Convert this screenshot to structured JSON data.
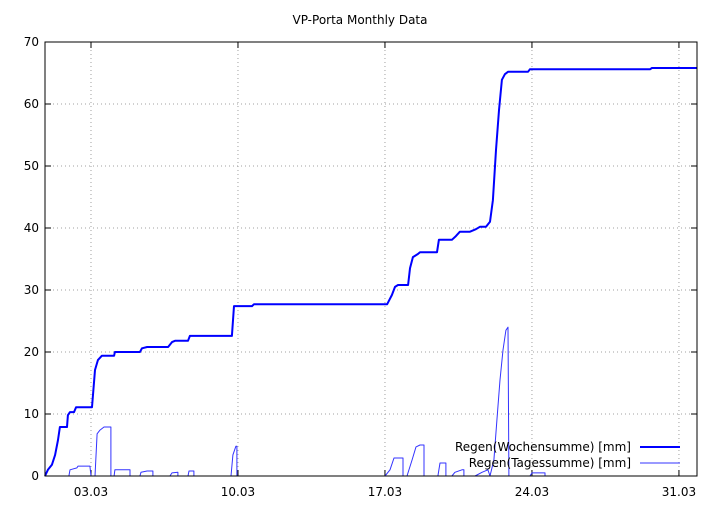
{
  "chart_data": {
    "type": "line",
    "title": "VP-Porta Monthly Data",
    "xlabel": "",
    "ylabel": "",
    "x_unit": "day of March",
    "xlim": [
      0.81,
      31.86
    ],
    "ylim": [
      0,
      70
    ],
    "yticks": [
      0,
      10,
      20,
      30,
      40,
      50,
      60,
      70
    ],
    "xticks": [
      {
        "value": 3,
        "label": "03.03"
      },
      {
        "value": 10,
        "label": "10.03"
      },
      {
        "value": 17,
        "label": "17.03"
      },
      {
        "value": 24,
        "label": "24.03"
      },
      {
        "value": 31,
        "label": "31.03"
      }
    ],
    "grid": true,
    "legend_position": "bottom-right",
    "series": [
      {
        "name": "Regen(Wochensumme) [mm]",
        "color": "#0000ff",
        "width": 2,
        "points": [
          [
            0.81,
            0
          ],
          [
            0.95,
            1
          ],
          [
            1.14,
            1.8
          ],
          [
            1.29,
            3.4
          ],
          [
            1.43,
            5.8
          ],
          [
            1.52,
            7.9
          ],
          [
            1.86,
            7.9
          ],
          [
            1.9,
            9.8
          ],
          [
            2.0,
            10.3
          ],
          [
            2.19,
            10.3
          ],
          [
            2.29,
            11.1
          ],
          [
            3.05,
            11.1
          ],
          [
            3.19,
            17.1
          ],
          [
            3.33,
            18.7
          ],
          [
            3.52,
            19.4
          ],
          [
            4.1,
            19.4
          ],
          [
            4.14,
            20
          ],
          [
            5.33,
            20
          ],
          [
            5.43,
            20.6
          ],
          [
            5.67,
            20.8
          ],
          [
            6.67,
            20.8
          ],
          [
            6.86,
            21.6
          ],
          [
            7.0,
            21.8
          ],
          [
            7.62,
            21.8
          ],
          [
            7.71,
            22.6
          ],
          [
            9.71,
            22.6
          ],
          [
            9.81,
            27.4
          ],
          [
            10.67,
            27.4
          ],
          [
            10.76,
            27.7
          ],
          [
            17.1,
            27.7
          ],
          [
            17.33,
            29.2
          ],
          [
            17.48,
            30.5
          ],
          [
            17.62,
            30.8
          ],
          [
            18.1,
            30.8
          ],
          [
            18.19,
            33.5
          ],
          [
            18.33,
            35.3
          ],
          [
            18.57,
            35.8
          ],
          [
            18.67,
            36.1
          ],
          [
            19.48,
            36.1
          ],
          [
            19.57,
            38.1
          ],
          [
            20.19,
            38.1
          ],
          [
            20.38,
            38.7
          ],
          [
            20.57,
            39.4
          ],
          [
            21.05,
            39.4
          ],
          [
            21.33,
            39.8
          ],
          [
            21.52,
            40.2
          ],
          [
            21.81,
            40.2
          ],
          [
            22.0,
            41
          ],
          [
            22.14,
            44.5
          ],
          [
            22.29,
            52.6
          ],
          [
            22.43,
            59
          ],
          [
            22.57,
            63.9
          ],
          [
            22.71,
            64.8
          ],
          [
            22.86,
            65.2
          ],
          [
            23.81,
            65.2
          ],
          [
            23.9,
            65.6
          ],
          [
            29.62,
            65.6
          ],
          [
            29.71,
            65.8
          ],
          [
            31.86,
            65.8
          ]
        ]
      },
      {
        "name": "Regen(Tagessumme) [mm]",
        "color": "#3333ff",
        "width": 1,
        "points": [
          [
            0.81,
            0
          ],
          [
            1.95,
            0
          ],
          [
            2.0,
            1.0
          ],
          [
            2.33,
            1.3
          ],
          [
            2.38,
            1.6
          ],
          [
            2.95,
            1.6
          ],
          [
            3.0,
            0
          ],
          [
            3.19,
            0
          ],
          [
            3.29,
            6.8
          ],
          [
            3.43,
            7.4
          ],
          [
            3.62,
            7.9
          ],
          [
            3.95,
            7.9
          ],
          [
            3.95,
            0
          ],
          [
            4.1,
            0
          ],
          [
            4.14,
            1.0
          ],
          [
            4.86,
            1.0
          ],
          [
            4.86,
            0
          ],
          [
            5.33,
            0
          ],
          [
            5.38,
            0.6
          ],
          [
            5.67,
            0.8
          ],
          [
            5.95,
            0.8
          ],
          [
            5.95,
            0
          ],
          [
            6.76,
            0
          ],
          [
            6.86,
            0.5
          ],
          [
            7.14,
            0.6
          ],
          [
            7.14,
            0
          ],
          [
            7.62,
            0
          ],
          [
            7.67,
            0.8
          ],
          [
            7.9,
            0.8
          ],
          [
            7.9,
            0
          ],
          [
            9.67,
            0
          ],
          [
            9.76,
            3.4
          ],
          [
            9.9,
            4.8
          ],
          [
            9.95,
            4.8
          ],
          [
            9.95,
            0
          ],
          [
            17.0,
            0
          ],
          [
            17.24,
            1.0
          ],
          [
            17.43,
            2.9
          ],
          [
            17.86,
            2.9
          ],
          [
            17.86,
            0
          ],
          [
            18.05,
            0
          ],
          [
            18.29,
            2.6
          ],
          [
            18.48,
            4.7
          ],
          [
            18.67,
            5.0
          ],
          [
            18.86,
            5.0
          ],
          [
            18.86,
            0
          ],
          [
            19.52,
            0
          ],
          [
            19.62,
            2.1
          ],
          [
            19.9,
            2.1
          ],
          [
            19.9,
            0
          ],
          [
            20.19,
            0
          ],
          [
            20.33,
            0.6
          ],
          [
            20.67,
            1.0
          ],
          [
            20.76,
            1.0
          ],
          [
            20.76,
            0
          ],
          [
            21.29,
            0
          ],
          [
            21.62,
            0.6
          ],
          [
            21.9,
            1.0
          ],
          [
            22.0,
            0
          ],
          [
            22.19,
            2.6
          ],
          [
            22.33,
            9
          ],
          [
            22.48,
            15.5
          ],
          [
            22.62,
            20.3
          ],
          [
            22.76,
            23.5
          ],
          [
            22.86,
            24
          ],
          [
            22.9,
            0
          ],
          [
            23.9,
            0
          ],
          [
            24.0,
            0.5
          ],
          [
            24.62,
            0.5
          ],
          [
            24.62,
            0
          ],
          [
            31.86,
            0
          ]
        ]
      }
    ]
  }
}
